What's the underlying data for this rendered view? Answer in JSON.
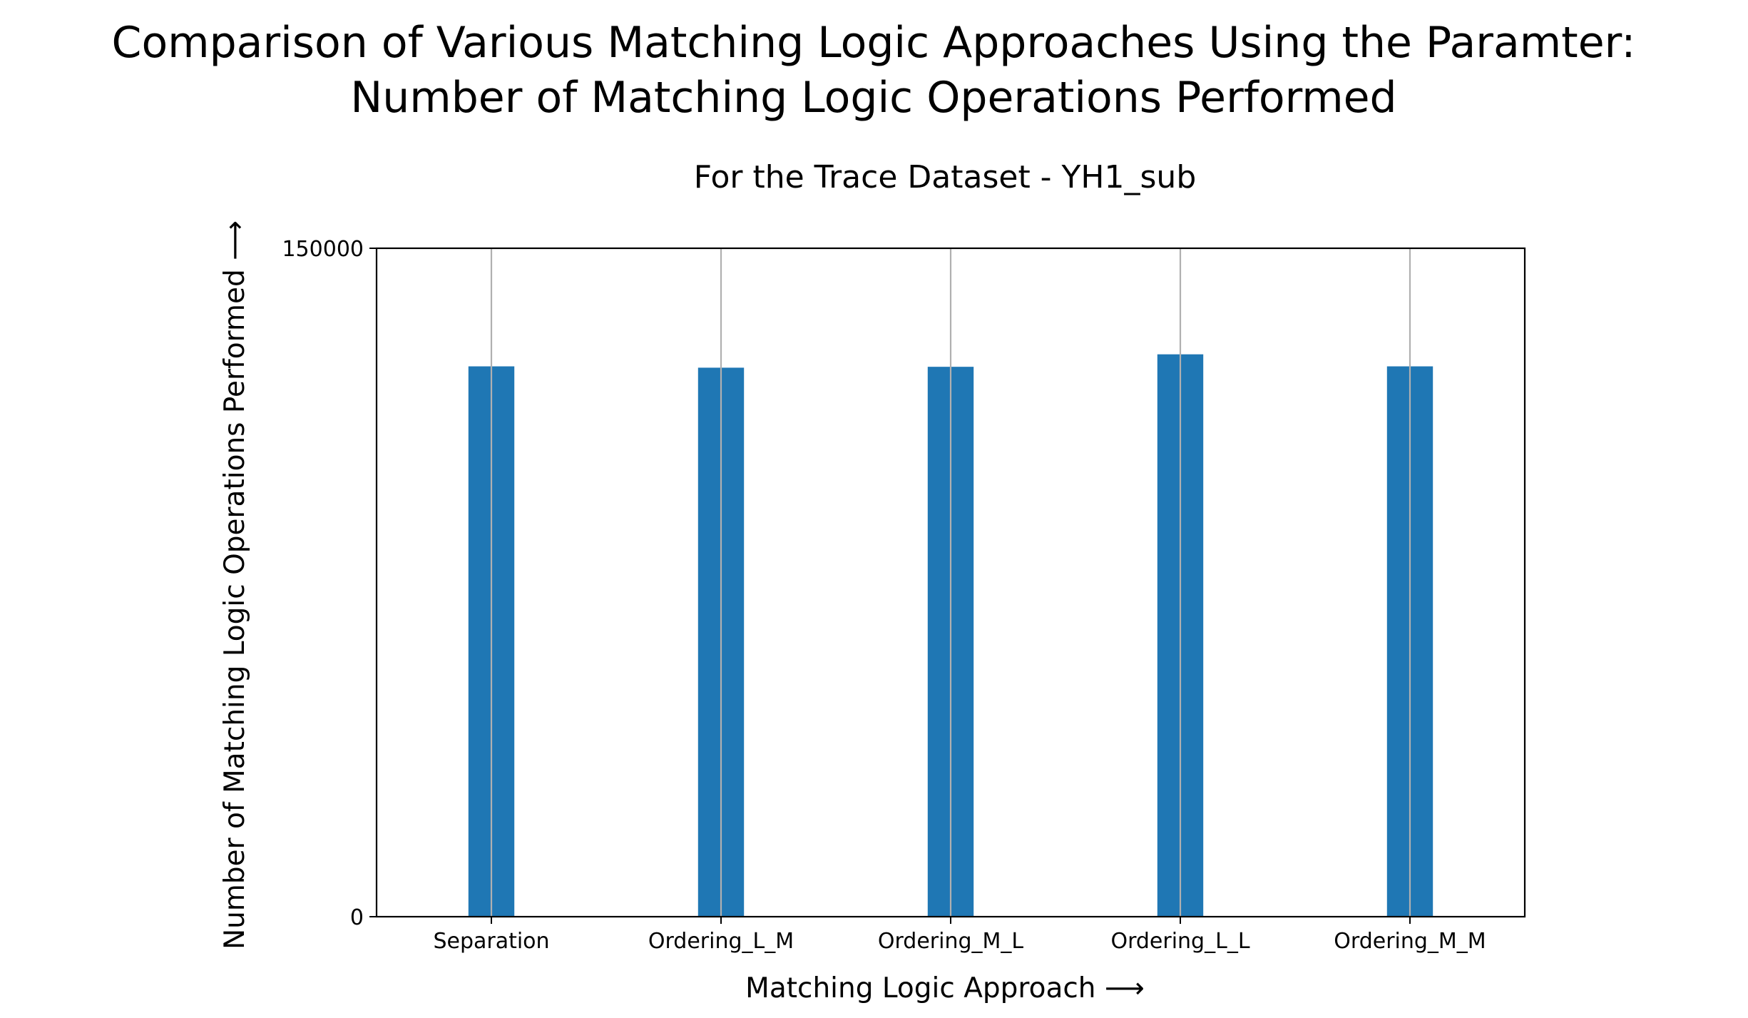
{
  "chart_data": {
    "type": "bar",
    "title_line1": "Comparison of Various Matching Logic Approaches Using the Paramter:",
    "title_line2": "Number of Matching Logic Operations Performed",
    "subtitle": "For the Trace Dataset - YH1_sub",
    "xlabel": "Matching Logic Approach ⟶",
    "ylabel": "Number of Matching Logic Operations Performed ⟶",
    "categories": [
      "Separation",
      "Ordering_L_M",
      "Ordering_M_L",
      "Ordering_L_L",
      "Ordering_M_M"
    ],
    "values": [
      123500,
      123200,
      123400,
      126200,
      123500
    ],
    "ylim": [
      0,
      150000
    ],
    "yticks": [
      "0",
      "150000"
    ],
    "grid": "vertical",
    "bar_color": "#1f77b4",
    "grid_color": "#b0b0b0"
  }
}
